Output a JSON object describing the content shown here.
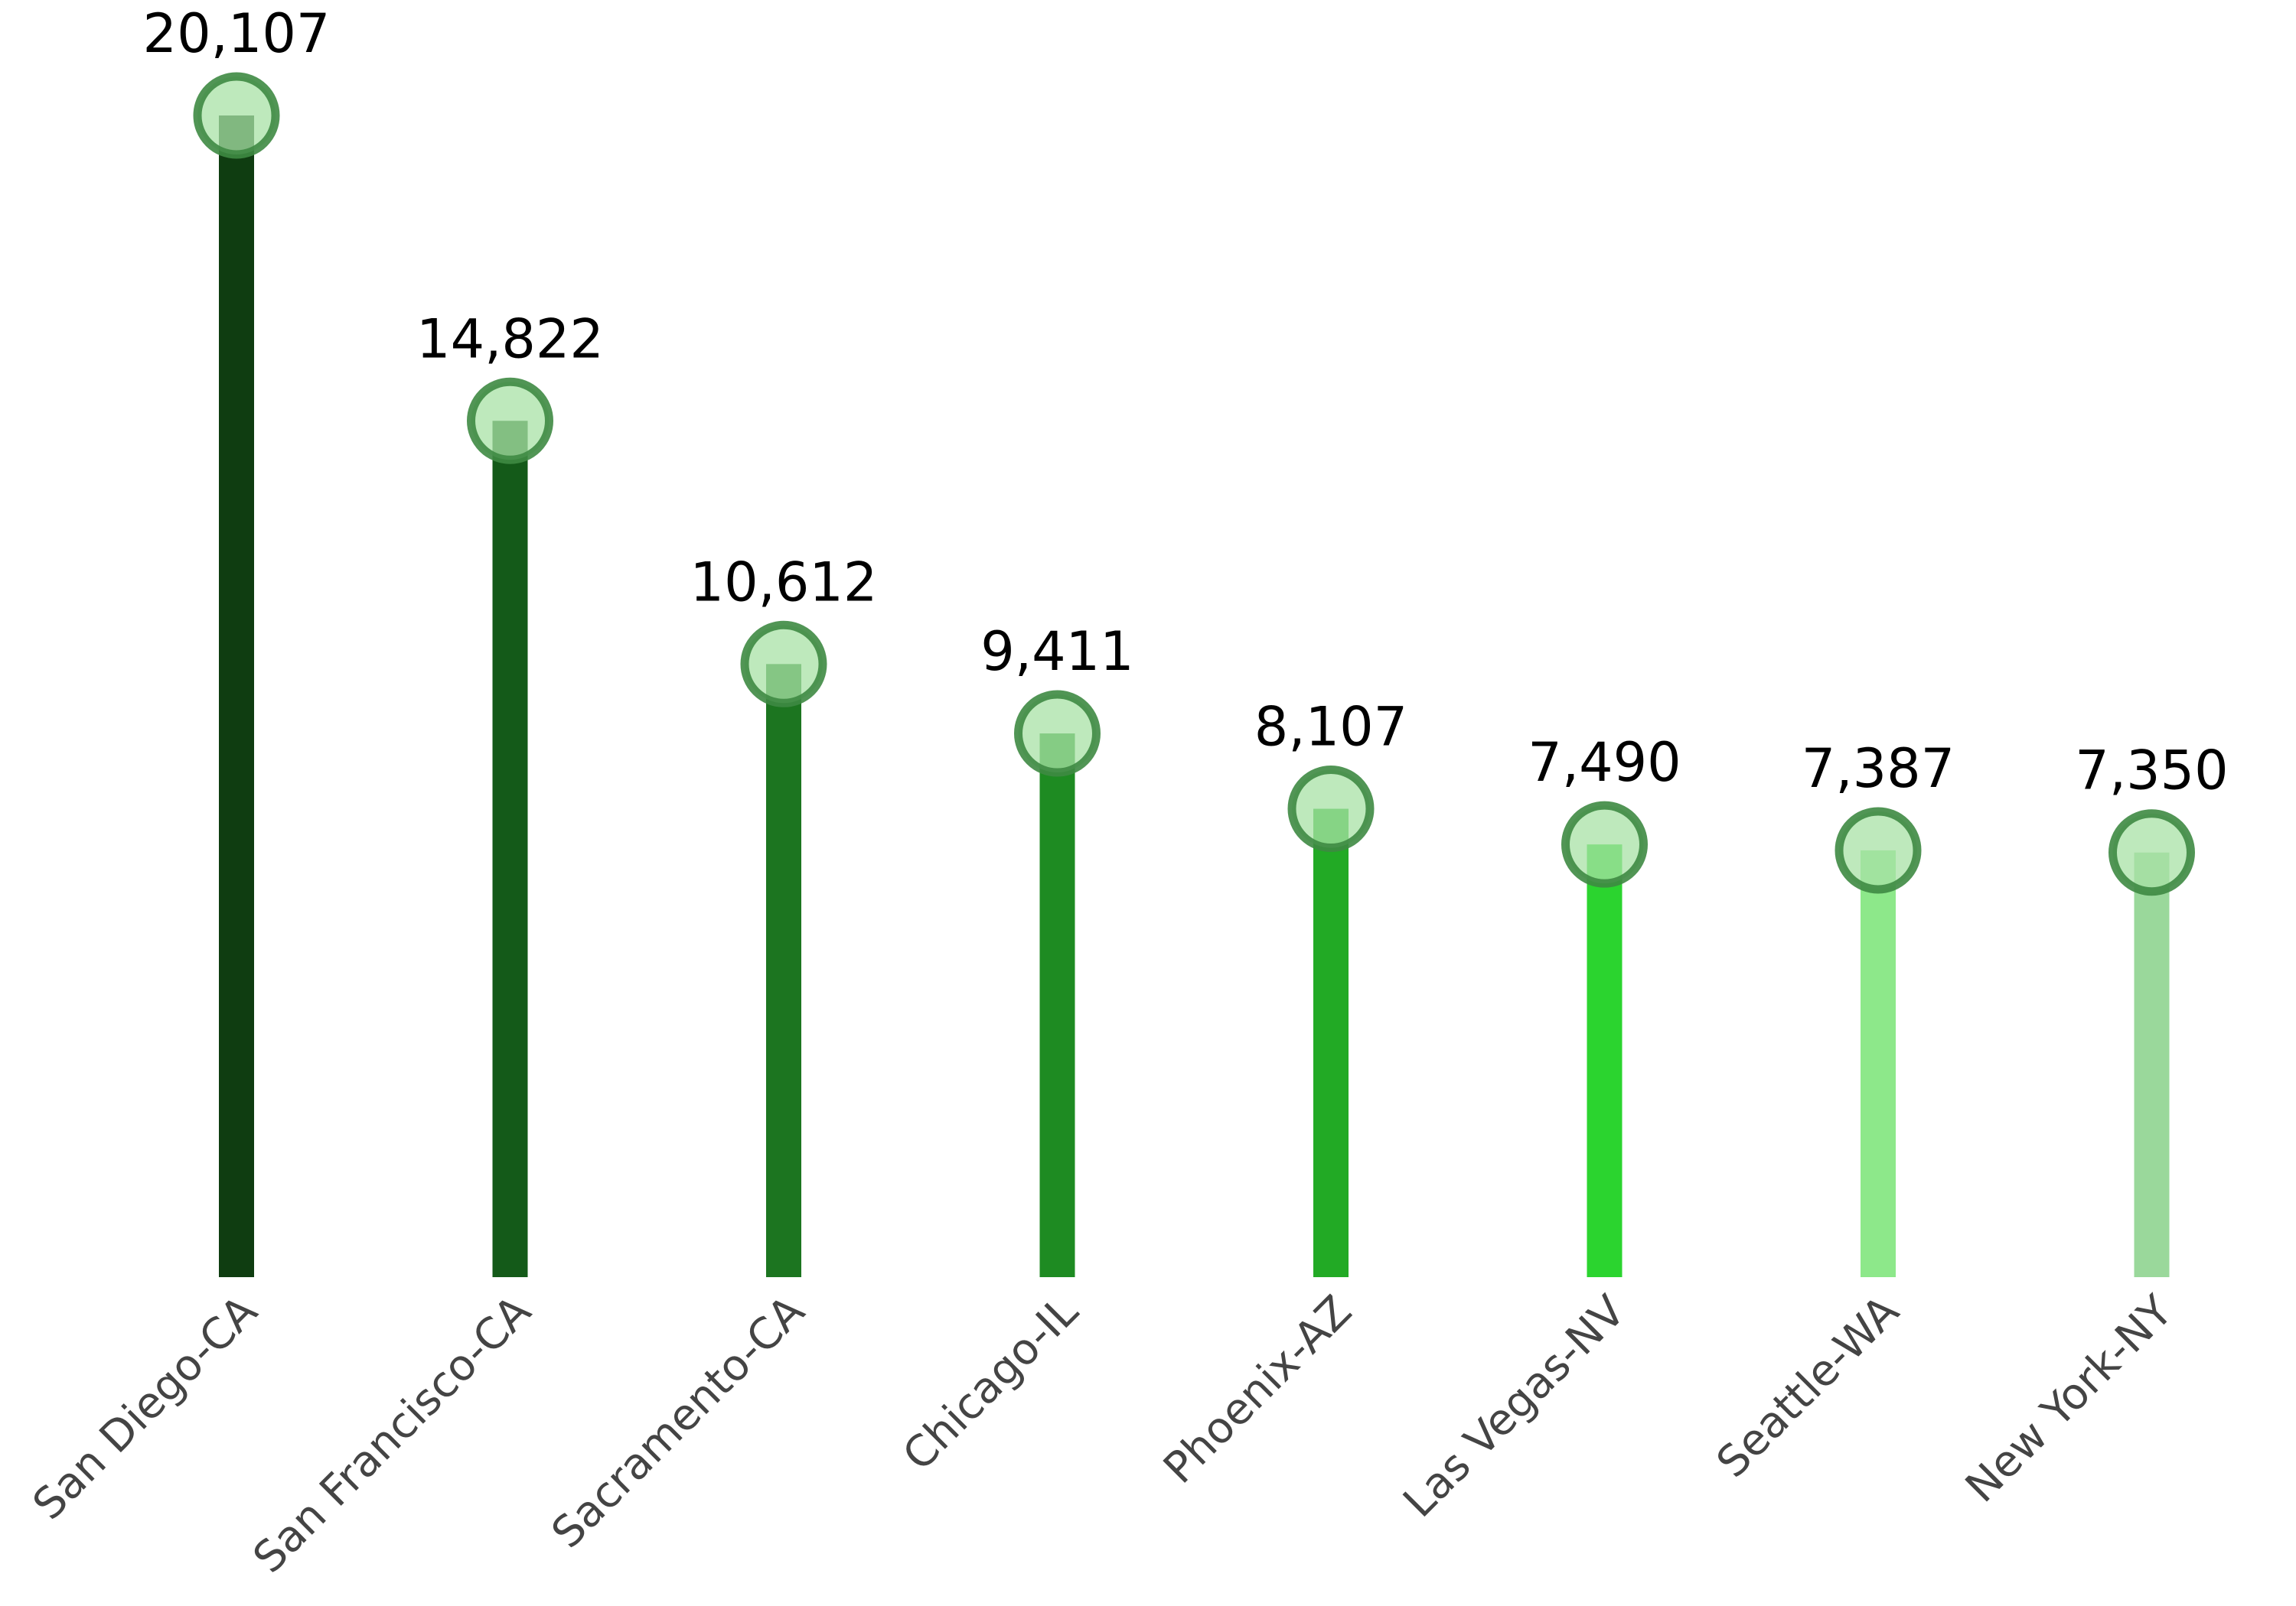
{
  "chart_data": {
    "type": "lollipop",
    "categories": [
      "San Diego-CA",
      "San Francisco-CA",
      "Sacramento-CA",
      "Chicago-IL",
      "Phoenix-AZ",
      "Las Vegas-NV",
      "Seattle-WA",
      "New York-NY"
    ],
    "values": [
      20107,
      14822,
      10612,
      9411,
      8107,
      7490,
      7387,
      7350
    ],
    "value_labels": [
      "20,107",
      "14,822",
      "10,612",
      "9,411",
      "8,107",
      "7,490",
      "7,387",
      "7,350"
    ],
    "stem_colors": [
      "#0f3d11",
      "#145a19",
      "#1c7520",
      "#1e8b22",
      "#22aa25",
      "#2bd42f",
      "#8de88a",
      "#9ad89b"
    ],
    "marker_fill": "#a8e2a5",
    "marker_edge": "#3e8a42",
    "label_color": "#444444",
    "ylim": [
      0,
      20107
    ],
    "grid": false,
    "axes_visible": false,
    "title": "",
    "xlabel": "",
    "ylabel": ""
  }
}
